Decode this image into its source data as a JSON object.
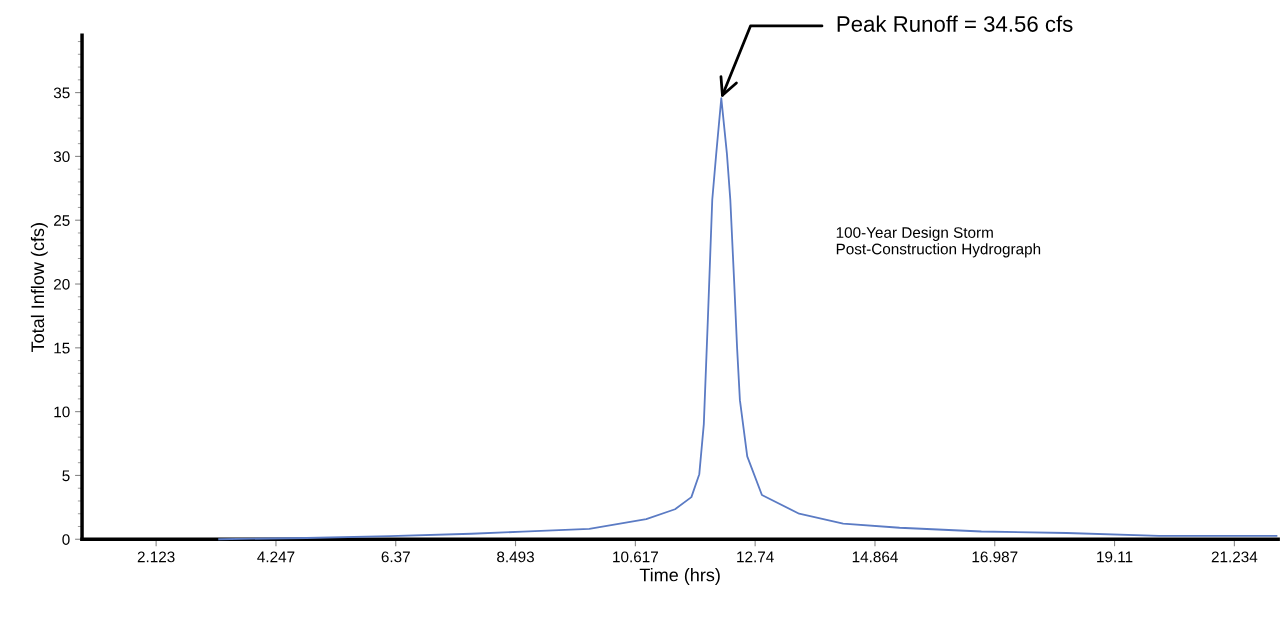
{
  "chart_data": {
    "type": "line",
    "xlabel": "Time (hrs)",
    "ylabel": "Total Inflow (cfs)",
    "annotations": [
      {
        "text": "Peak Runoff = 34.56 cfs",
        "x": 12.14,
        "y": 34.56
      },
      "100-Year Design Storm\nPost-Construction Hydrograph"
    ],
    "series": [
      {
        "color": "#5b7bc4",
        "x": [
          3.24,
          4.79,
          6.26,
          7.71,
          8.62,
          9.8,
          10.81,
          11.32,
          11.61,
          11.75,
          11.83,
          11.9,
          11.98,
          12.05,
          12.14,
          12.24,
          12.3,
          12.37,
          12.42,
          12.47,
          12.6,
          12.86,
          13.52,
          14.3,
          15.3,
          16.75,
          18.26,
          19.9,
          21.98
        ],
        "values": [
          0,
          0.1,
          0.24,
          0.43,
          0.6,
          0.82,
          1.57,
          2.35,
          3.3,
          5.1,
          9.0,
          17,
          26.6,
          30.2,
          34.56,
          30.2,
          26.6,
          20,
          15,
          10.9,
          6.5,
          3.47,
          2.0,
          1.22,
          0.9,
          0.61,
          0.49,
          0.26,
          0.26
        ]
      }
    ],
    "xlim": [
      0.81,
      22.01
    ],
    "xticks": [
      2.123,
      4.247,
      6.37,
      8.493,
      10.617,
      12.74,
      14.864,
      16.987,
      19.11,
      21.234
    ],
    "ylim": [
      0,
      39.5
    ],
    "yticks": [
      0,
      {
        "value": 1,
        "label": null
      },
      {
        "value": 2,
        "label": null
      },
      {
        "value": 3,
        "label": null
      },
      {
        "value": 4,
        "label": null
      },
      5,
      {
        "value": 6,
        "label": null
      },
      {
        "value": 7,
        "label": null
      },
      {
        "value": 8,
        "label": null
      },
      {
        "value": 9,
        "label": null
      },
      10,
      {
        "value": 11,
        "label": null
      },
      {
        "value": 12,
        "label": null
      },
      {
        "value": 13,
        "label": null
      },
      {
        "value": 14,
        "label": null
      },
      15,
      {
        "value": 16,
        "label": null
      },
      {
        "value": 17,
        "label": null
      },
      {
        "value": 18,
        "label": null
      },
      {
        "value": 19,
        "label": null
      },
      20,
      {
        "value": 21,
        "label": null
      },
      {
        "value": 22,
        "label": null
      },
      {
        "value": 23,
        "label": null
      },
      {
        "value": 24,
        "label": null
      },
      25,
      {
        "value": 26,
        "label": null
      },
      {
        "value": 27,
        "label": null
      },
      {
        "value": 28,
        "label": null
      },
      {
        "value": 29,
        "label": null
      },
      30,
      {
        "value": 31,
        "label": null
      },
      {
        "value": 32,
        "label": null
      },
      {
        "value": 33,
        "label": null
      },
      {
        "value": 34,
        "label": null
      },
      35,
      {
        "value": 36,
        "label": null
      },
      {
        "value": 37,
        "label": null
      },
      {
        "value": 38,
        "label": null
      },
      {
        "value": 39,
        "label": null
      }
    ],
    "grid": false,
    "legend": false,
    "marker": "none",
    "line_style": "solid"
  }
}
